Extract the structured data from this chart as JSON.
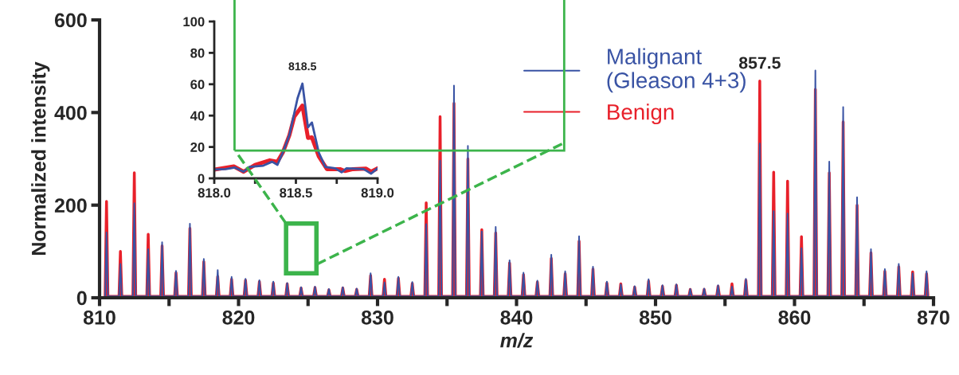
{
  "chart_data": [
    {
      "type": "line",
      "xlabel": "m/z",
      "ylabel": "Normalized intensity",
      "x": [
        810.4,
        810.5,
        810.6,
        811.4,
        811.5,
        811.6,
        812.4,
        812.5,
        812.6,
        813.4,
        813.5,
        813.6,
        814.4,
        814.5,
        814.6,
        815.4,
        815.5,
        815.6,
        816.4,
        816.5,
        816.6,
        817.4,
        817.5,
        817.6,
        818.4,
        818.5,
        818.6,
        819.4,
        819.5,
        819.6,
        820.4,
        820.5,
        820.6,
        821.4,
        821.5,
        821.6,
        822.4,
        822.5,
        822.6,
        823.4,
        823.5,
        823.6,
        824.4,
        824.5,
        824.6,
        825.4,
        825.5,
        825.6,
        826.4,
        826.5,
        826.6,
        827.4,
        827.5,
        827.6,
        828.4,
        828.5,
        828.6,
        829.4,
        829.5,
        829.6,
        830.4,
        830.5,
        830.6,
        831.4,
        831.5,
        831.6,
        832.4,
        832.5,
        832.6,
        833.4,
        833.5,
        833.6,
        834.4,
        834.5,
        834.6,
        835.4,
        835.5,
        835.6,
        836.4,
        836.5,
        836.6,
        837.4,
        837.5,
        837.6,
        838.4,
        838.5,
        838.6,
        839.4,
        839.5,
        839.6,
        840.4,
        840.5,
        840.6,
        841.4,
        841.5,
        841.6,
        842.4,
        842.5,
        842.6,
        843.4,
        843.5,
        843.6,
        844.4,
        844.5,
        844.6,
        845.4,
        845.5,
        845.6,
        846.4,
        846.5,
        846.6,
        847.4,
        847.5,
        847.6,
        848.4,
        848.5,
        848.6,
        849.4,
        849.5,
        849.6,
        850.4,
        850.5,
        850.6,
        851.4,
        851.5,
        851.6,
        852.4,
        852.5,
        852.6,
        853.4,
        853.5,
        853.6,
        854.4,
        854.5,
        854.6,
        855.4,
        855.5,
        855.6,
        856.4,
        856.5,
        856.6,
        857.4,
        857.5,
        857.6,
        858.4,
        858.5,
        858.6,
        859.4,
        859.5,
        859.6,
        860.4,
        860.5,
        860.6,
        861.4,
        861.5,
        861.6,
        862.4,
        862.5,
        862.6,
        863.4,
        863.5,
        863.6,
        864.4,
        864.5,
        864.6,
        865.4,
        865.5,
        865.6,
        866.4,
        866.5,
        866.6,
        867.4,
        867.5,
        867.6,
        868.4,
        868.5,
        868.6,
        869.4,
        869.5,
        869.6
      ],
      "series": [
        {
          "name": "Benign",
          "color": "#e8202a",
          "values": [
            3,
            208,
            3,
            3,
            100,
            3,
            3,
            270,
            3,
            3,
            137,
            3,
            3,
            112,
            3,
            3,
            54,
            3,
            3,
            150,
            3,
            3,
            78,
            3,
            3,
            46,
            3,
            3,
            40,
            3,
            3,
            38,
            3,
            3,
            35,
            3,
            3,
            32,
            3,
            3,
            30,
            3,
            3,
            21,
            3,
            3,
            22,
            3,
            3,
            17,
            3,
            3,
            21,
            3,
            3,
            18,
            3,
            3,
            48,
            3,
            3,
            40,
            3,
            3,
            42,
            3,
            3,
            31,
            3,
            3,
            205,
            3,
            3,
            391,
            3,
            3,
            420,
            3,
            3,
            300,
            3,
            3,
            147,
            3,
            3,
            140,
            3,
            3,
            75,
            3,
            3,
            50,
            3,
            3,
            34,
            3,
            3,
            85,
            3,
            3,
            52,
            3,
            3,
            122,
            3,
            3,
            62,
            3,
            3,
            32,
            3,
            3,
            30,
            3,
            3,
            23,
            3,
            3,
            36,
            3,
            3,
            25,
            3,
            3,
            27,
            3,
            3,
            18,
            3,
            3,
            18,
            3,
            3,
            25,
            3,
            3,
            30,
            3,
            3,
            38,
            3,
            3,
            468,
            3,
            3,
            271,
            3,
            3,
            252,
            3,
            3,
            132,
            3,
            3,
            450,
            3,
            3,
            270,
            3,
            3,
            380,
            3,
            3,
            200,
            3,
            3,
            97,
            3,
            3,
            57,
            3,
            3,
            67,
            3,
            3,
            56,
            3,
            3,
            52,
            3
          ]
        },
        {
          "name": "Malignant\n(Gleason 4+3)",
          "color": "#3953a4",
          "values": [
            3,
            141,
            3,
            3,
            73,
            3,
            3,
            204,
            3,
            3,
            105,
            3,
            3,
            120,
            3,
            3,
            58,
            3,
            3,
            160,
            3,
            3,
            84,
            3,
            3,
            60,
            3,
            3,
            45,
            3,
            3,
            41,
            3,
            3,
            38,
            3,
            3,
            35,
            3,
            3,
            32,
            3,
            3,
            23,
            3,
            3,
            24,
            3,
            3,
            19,
            3,
            3,
            23,
            3,
            3,
            20,
            3,
            3,
            53,
            3,
            3,
            33,
            3,
            3,
            45,
            3,
            3,
            34,
            3,
            3,
            159,
            3,
            3,
            296,
            3,
            3,
            458,
            3,
            3,
            328,
            3,
            3,
            143,
            3,
            3,
            153,
            3,
            3,
            81,
            3,
            3,
            54,
            3,
            3,
            37,
            3,
            3,
            93,
            3,
            3,
            57,
            3,
            3,
            133,
            3,
            3,
            67,
            3,
            3,
            35,
            3,
            3,
            29,
            3,
            3,
            25,
            3,
            3,
            40,
            3,
            3,
            27,
            3,
            3,
            29,
            3,
            3,
            19,
            3,
            3,
            20,
            3,
            3,
            27,
            3,
            3,
            24,
            3,
            3,
            41,
            3,
            3,
            333,
            3,
            3,
            187,
            3,
            3,
            182,
            3,
            3,
            107,
            3,
            3,
            491,
            3,
            3,
            294,
            3,
            3,
            412,
            3,
            3,
            217,
            3,
            3,
            105,
            3,
            3,
            62,
            3,
            3,
            73,
            3,
            3,
            53,
            3,
            3,
            57,
            3
          ]
        }
      ],
      "xlim": [
        810,
        870
      ],
      "ylim": [
        0,
        600
      ],
      "xticks": [
        810,
        {
          "value": 815,
          "label": null
        },
        820,
        {
          "value": 825,
          "label": null
        },
        830,
        {
          "value": 835,
          "label": null
        },
        840,
        {
          "value": 845,
          "label": null
        },
        850,
        {
          "value": 855,
          "label": null
        },
        860,
        {
          "value": 865,
          "label": null
        },
        870
      ],
      "yticks": [
        0,
        200,
        400,
        600
      ],
      "annotations": [
        {
          "text": "857.5",
          "x": 857.5,
          "y": 468
        }
      ],
      "legend": "top right",
      "grid": false
    },
    {
      "type": "line",
      "series": [
        {
          "color": "#e8202a",
          "x": [
            818.0,
            818.12,
            818.18,
            818.25,
            818.34,
            818.387,
            818.42,
            818.46,
            818.49,
            818.54,
            818.574,
            818.598,
            818.64,
            818.69,
            818.77,
            818.8,
            818.85,
            818.93,
            818.96,
            819.0
          ],
          "values": [
            5.6,
            7.6,
            4.2,
            8.6,
            11.5,
            10.6,
            16.5,
            27.5,
            39.3,
            46.4,
            25.8,
            26.1,
            14,
            5.9,
            5.9,
            4.7,
            5.9,
            6.2,
            4.2,
            6.4
          ]
        },
        {
          "color": "#3953a4",
          "x": [
            818.0,
            818.07,
            818.127,
            818.18,
            818.216,
            818.3,
            818.354,
            818.387,
            818.42,
            818.46,
            818.51,
            818.54,
            818.574,
            818.598,
            818.64,
            818.68,
            818.74,
            818.78,
            818.81,
            818.915,
            818.96,
            819.0
          ],
          "values": [
            5.6,
            5.9,
            6.9,
            4.2,
            7.3,
            8.1,
            10.6,
            8.6,
            16.5,
            27.5,
            51,
            60.4,
            32.5,
            35.6,
            16.5,
            7.3,
            6.4,
            3.9,
            6.4,
            5.9,
            3,
            6.4
          ]
        }
      ],
      "xlim": [
        818,
        819
      ],
      "ylim": [
        0,
        100
      ],
      "xticks": [
        {
          "value": 818,
          "label": "818.0"
        },
        {
          "value": 818.25,
          "label": null
        },
        {
          "value": 818.5,
          "label": "818.5"
        },
        {
          "value": 818.75,
          "label": null
        },
        {
          "value": 819,
          "label": "819.0"
        }
      ],
      "yticks": [
        0,
        20,
        40,
        60,
        80,
        100
      ],
      "annotations": [
        {
          "text": "818.5",
          "x": 818.54,
          "y": 60.4
        }
      ],
      "grid": false
    }
  ]
}
